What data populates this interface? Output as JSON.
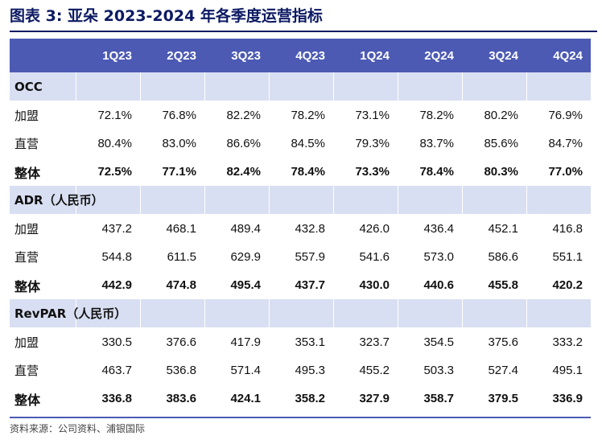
{
  "title": "图表 3: 亚朵 2023-2024 年各季度运营指标",
  "header": [
    "1Q23",
    "2Q23",
    "3Q23",
    "4Q23",
    "1Q24",
    "2Q24",
    "3Q24",
    "4Q24"
  ],
  "sections": [
    {
      "name": "OCC",
      "rows": [
        {
          "label": "加盟",
          "values": [
            "72.1%",
            "76.8%",
            "82.2%",
            "78.2%",
            "73.1%",
            "78.2%",
            "80.2%",
            "76.9%"
          ]
        },
        {
          "label": "直营",
          "values": [
            "80.4%",
            "83.0%",
            "86.6%",
            "84.5%",
            "79.3%",
            "83.7%",
            "85.6%",
            "84.7%"
          ]
        },
        {
          "label": "整体",
          "values": [
            "72.5%",
            "77.1%",
            "82.4%",
            "78.4%",
            "73.3%",
            "78.4%",
            "80.3%",
            "77.0%"
          ]
        }
      ]
    },
    {
      "name": "ADR（人民币）",
      "rows": [
        {
          "label": "加盟",
          "values": [
            "437.2",
            "468.1",
            "489.4",
            "432.8",
            "426.0",
            "436.4",
            "452.1",
            "416.8"
          ]
        },
        {
          "label": "直营",
          "values": [
            "544.8",
            "611.5",
            "629.9",
            "557.9",
            "541.6",
            "573.0",
            "586.6",
            "551.1"
          ]
        },
        {
          "label": "整体",
          "values": [
            "442.9",
            "474.8",
            "495.4",
            "437.7",
            "430.0",
            "440.6",
            "455.8",
            "420.2"
          ]
        }
      ]
    },
    {
      "name": "RevPAR（人民币）",
      "rows": [
        {
          "label": "加盟",
          "values": [
            "330.5",
            "376.6",
            "417.9",
            "353.1",
            "323.7",
            "354.5",
            "375.6",
            "333.2"
          ]
        },
        {
          "label": "直营",
          "values": [
            "463.7",
            "536.8",
            "571.4",
            "495.3",
            "455.2",
            "503.3",
            "527.4",
            "495.1"
          ]
        },
        {
          "label": "整体",
          "values": [
            "336.8",
            "383.6",
            "424.1",
            "358.2",
            "327.9",
            "358.7",
            "379.5",
            "336.9"
          ]
        }
      ]
    }
  ],
  "source": "资料来源：公司资料、浦银国际",
  "colors": {
    "title": "#0c1a63",
    "header_bg": "#4c5ab4",
    "section_bg": "#d9dff2"
  }
}
